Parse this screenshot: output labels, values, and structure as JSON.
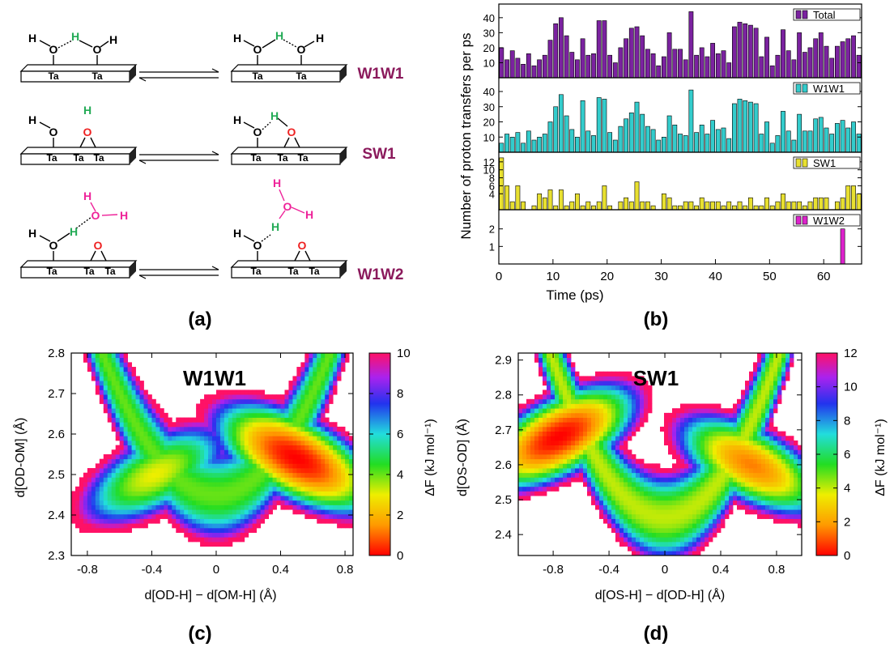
{
  "panels": {
    "a": {
      "tag": "(a)",
      "atoms": {
        "H": "H",
        "O": "O",
        "Ta": "Ta"
      },
      "rows": [
        "W1W1",
        "SW1",
        "W1W2"
      ]
    },
    "b": {
      "tag": "(b)"
    },
    "c": {
      "tag": "(c)"
    },
    "d": {
      "tag": "(d)"
    }
  },
  "colors": {
    "w1w1_label": "#8b1a5c",
    "total": "#7b22a0",
    "w1w1": "#33cccc",
    "sw1": "#e8e030",
    "w1w2": "#dd22cc",
    "h_green": "#22aa55",
    "o_red": "#ee2222",
    "h_pink": "#ee2299"
  },
  "chart_data": [
    {
      "id": "b",
      "type": "bar",
      "title": "",
      "xlabel": "Time (ps)",
      "ylabel": "Number of proton transfers per ps",
      "x": [
        0,
        1,
        2,
        3,
        4,
        5,
        6,
        7,
        8,
        9,
        10,
        11,
        12,
        13,
        14,
        15,
        16,
        17,
        18,
        19,
        20,
        21,
        22,
        23,
        24,
        25,
        26,
        27,
        28,
        29,
        30,
        31,
        32,
        33,
        34,
        35,
        36,
        37,
        38,
        39,
        40,
        41,
        42,
        43,
        44,
        45,
        46,
        47,
        48,
        49,
        50,
        51,
        52,
        53,
        54,
        55,
        56,
        57,
        58,
        59,
        60,
        61,
        62,
        63,
        64,
        65,
        66
      ],
      "xlim": [
        0,
        67
      ],
      "xticks": [
        0,
        10,
        20,
        30,
        40,
        50,
        60
      ],
      "series": [
        {
          "name": "Total",
          "color": "#7b22a0",
          "ylim": [
            0,
            48
          ],
          "yticks": [
            10,
            20,
            30,
            40
          ],
          "values": [
            20,
            12,
            18,
            13,
            9,
            16,
            8,
            12,
            15,
            25,
            36,
            40,
            28,
            17,
            12,
            26,
            15,
            16,
            38,
            38,
            15,
            10,
            20,
            26,
            33,
            34,
            28,
            19,
            16,
            8,
            14,
            30,
            19,
            19,
            12,
            44,
            15,
            20,
            14,
            23,
            16,
            18,
            10,
            34,
            37,
            36,
            35,
            33,
            14,
            27,
            8,
            15,
            32,
            18,
            12,
            30,
            17,
            20,
            26,
            30,
            21,
            13,
            21,
            24,
            26,
            28,
            15
          ]
        },
        {
          "name": "W1W1",
          "color": "#33cccc",
          "ylim": [
            0,
            48
          ],
          "yticks": [
            10,
            20,
            30,
            40
          ],
          "values": [
            6,
            12,
            10,
            13,
            6,
            14,
            8,
            10,
            12,
            20,
            30,
            38,
            24,
            15,
            10,
            34,
            14,
            11,
            36,
            35,
            13,
            8,
            17,
            22,
            26,
            33,
            25,
            17,
            15,
            8,
            10,
            24,
            18,
            12,
            11,
            41,
            13,
            18,
            12,
            21,
            15,
            16,
            9,
            32,
            35,
            34,
            33,
            32,
            12,
            20,
            6,
            11,
            27,
            14,
            8,
            25,
            14,
            14,
            22,
            23,
            16,
            12,
            19,
            21,
            16,
            20,
            12
          ]
        },
        {
          "name": "SW1",
          "color": "#e8e030",
          "ylim": [
            0,
            14
          ],
          "yticks": [
            4,
            6,
            8,
            10,
            12
          ],
          "values": [
            13,
            6,
            2,
            6,
            2,
            0,
            1,
            4,
            3,
            5,
            1,
            5,
            1,
            2,
            4,
            1,
            2,
            1,
            2,
            6,
            1,
            0,
            2,
            3,
            2,
            7,
            2,
            2,
            1,
            0,
            4,
            3,
            1,
            1,
            2,
            2,
            1,
            3,
            2,
            2,
            2,
            1,
            2,
            1,
            2,
            1,
            3,
            1,
            1,
            3,
            1,
            2,
            4,
            2,
            2,
            2,
            1,
            2,
            3,
            3,
            3,
            0,
            2,
            3,
            6,
            6,
            4
          ]
        },
        {
          "name": "W1W2",
          "color": "#dd22cc",
          "ylim": [
            0,
            3
          ],
          "yticks": [
            1,
            2
          ],
          "values": [
            0,
            0,
            0,
            0,
            0,
            0,
            0,
            0,
            0,
            0,
            0,
            0,
            0,
            0,
            0,
            0,
            0,
            0,
            0,
            0,
            0,
            0,
            0,
            0,
            0,
            0,
            0,
            0,
            0,
            0,
            0,
            0,
            0,
            0,
            0,
            0,
            0,
            0,
            0,
            0,
            0,
            0,
            0,
            0,
            0,
            0,
            0,
            0,
            0,
            0,
            0,
            0,
            0,
            0,
            0,
            0,
            0,
            0,
            0,
            0,
            0,
            0,
            0,
            2,
            0,
            0,
            0
          ]
        }
      ]
    },
    {
      "id": "c",
      "type": "heatmap",
      "title": "W1W1",
      "xlabel": "d[OD-H] − d[OM-H] (Å)",
      "ylabel": "d[OD-OM] (Å)",
      "xlim": [
        -0.9,
        0.85
      ],
      "ylim": [
        2.3,
        2.8
      ],
      "xticks": [
        "-0.8",
        "-0.4",
        "0",
        "0.4",
        "0.8"
      ],
      "yticks": [
        "2.3",
        "2.4",
        "2.5",
        "2.6",
        "2.7",
        "2.8"
      ],
      "colorbar": {
        "label": "ΔF (kJ mol⁻¹)",
        "range": [
          0,
          10
        ],
        "ticks": [
          "0",
          "2",
          "4",
          "6",
          "8",
          "10"
        ]
      },
      "minima": [
        {
          "x": 0.5,
          "y": 2.54,
          "F": 0
        },
        {
          "x": -0.38,
          "y": 2.5,
          "F": 3
        }
      ]
    },
    {
      "id": "d",
      "type": "heatmap",
      "title": "SW1",
      "xlabel": "d[OS-H] − d[OD-H] (Å)",
      "ylabel": "d[OS-OD] (Å)",
      "xlim": [
        -1.05,
        0.98
      ],
      "ylim": [
        2.34,
        2.92
      ],
      "xticks": [
        "-0.8",
        "-0.4",
        "0",
        "0.4",
        "0.8"
      ],
      "yticks": [
        "2.4",
        "2.5",
        "2.6",
        "2.7",
        "2.8",
        "2.9"
      ],
      "colorbar": {
        "label": "ΔF (kJ mol⁻¹)",
        "range": [
          0,
          12
        ],
        "ticks": [
          "0",
          "2",
          "4",
          "6",
          "8",
          "10",
          "12"
        ]
      },
      "minima": [
        {
          "x": -0.76,
          "y": 2.68,
          "F": 0
        },
        {
          "x": 0.62,
          "y": 2.6,
          "F": 1.5
        }
      ]
    }
  ]
}
